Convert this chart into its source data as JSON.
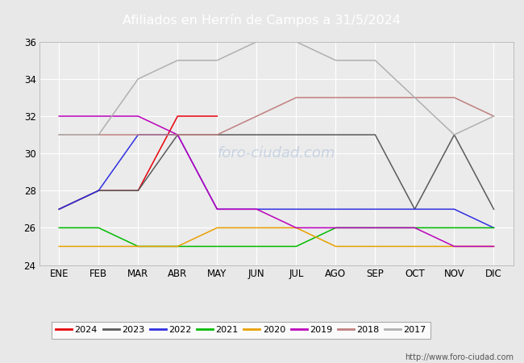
{
  "title": "Afiliados en Herrín de Campos a 31/5/2024",
  "months": [
    "ENE",
    "FEB",
    "MAR",
    "ABR",
    "MAY",
    "JUN",
    "JUL",
    "AGO",
    "SEP",
    "OCT",
    "NOV",
    "DIC"
  ],
  "ylim": [
    24,
    36
  ],
  "yticks": [
    24,
    26,
    28,
    30,
    32,
    34,
    36
  ],
  "series": {
    "2024": {
      "color": "#e8000a",
      "values": [
        27,
        28,
        28,
        32,
        32,
        null,
        null,
        null,
        null,
        null,
        null,
        null
      ]
    },
    "2023": {
      "color": "#5a5a5a",
      "values": [
        27,
        28,
        28,
        31,
        31,
        31,
        31,
        31,
        31,
        27,
        31,
        27
      ]
    },
    "2022": {
      "color": "#3030e0",
      "values": [
        27,
        28,
        31,
        31,
        27,
        27,
        27,
        27,
        27,
        27,
        27,
        26
      ]
    },
    "2021": {
      "color": "#00bb00",
      "values": [
        26,
        26,
        25,
        25,
        25,
        25,
        25,
        26,
        26,
        26,
        26,
        26
      ]
    },
    "2020": {
      "color": "#e8a000",
      "values": [
        25,
        25,
        25,
        25,
        26,
        26,
        26,
        25,
        25,
        25,
        25,
        25
      ]
    },
    "2019": {
      "color": "#bb00bb",
      "values": [
        32,
        32,
        32,
        31,
        27,
        27,
        26,
        26,
        26,
        26,
        25,
        25
      ]
    },
    "2018": {
      "color": "#c08080",
      "values": [
        31,
        31,
        31,
        31,
        31,
        32,
        33,
        33,
        33,
        33,
        33,
        32
      ]
    },
    "2017": {
      "color": "#b0b0b0",
      "values": [
        31,
        31,
        34,
        35,
        35,
        36,
        36,
        35,
        35,
        33,
        31,
        32
      ]
    }
  },
  "legend_order": [
    "2024",
    "2023",
    "2022",
    "2021",
    "2020",
    "2019",
    "2018",
    "2017"
  ],
  "footer_text": "http://www.foro-ciudad.com",
  "header_bg": "#5878c8",
  "plot_bg": "#ebebeb",
  "fig_bg": "#e8e8e8",
  "grid_color": "#ffffff",
  "watermark": "FORO-CIUDAD.COM"
}
